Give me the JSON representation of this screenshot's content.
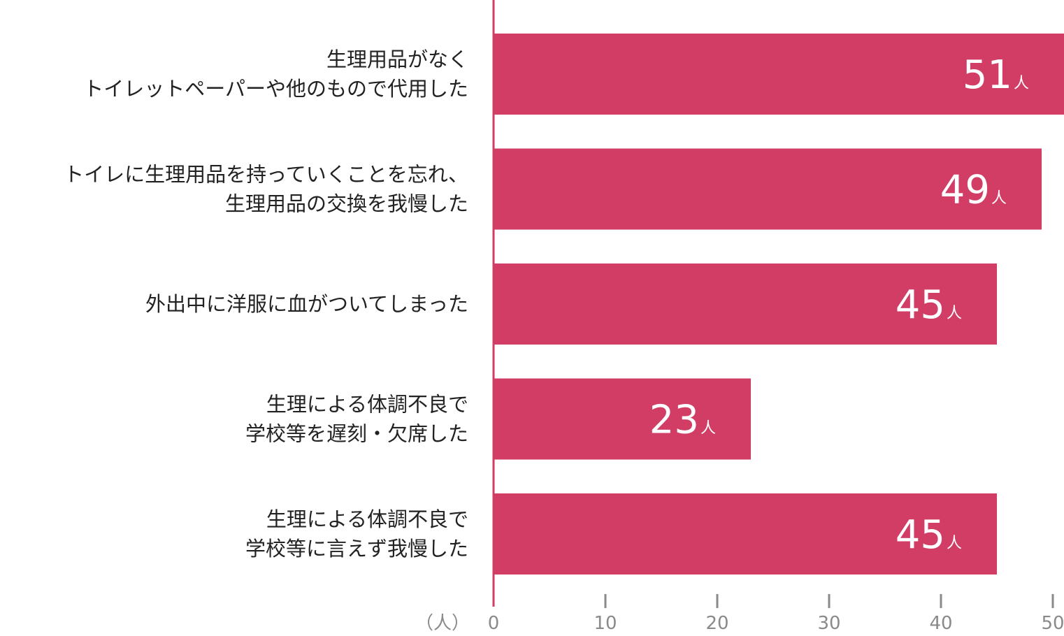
{
  "chart_data": {
    "type": "bar",
    "orientation": "horizontal",
    "categories": [
      [
        "生理用品がなく",
        "トイレットペーパーや他のもので代用した"
      ],
      [
        "トイレに生理用品を持っていくことを忘れ、",
        "生理用品の交換を我慢した"
      ],
      [
        "外出中に洋服に血がついてしまった"
      ],
      [
        "生理による体調不良で",
        "学校等を遅刻・欠席した"
      ],
      [
        "生理による体調不良で",
        "学校等に言えず我慢した"
      ]
    ],
    "values": [
      51,
      49,
      45,
      23,
      45
    ],
    "value_unit": "人",
    "axis_unit_label": "（人）",
    "xlim": [
      0,
      50
    ],
    "xticks": [
      0,
      10,
      20,
      30,
      40,
      50
    ],
    "bar_color": "#d23d66",
    "axis_color": "#d23d66",
    "tick_color": "#8a8a8a",
    "grid": false
  }
}
